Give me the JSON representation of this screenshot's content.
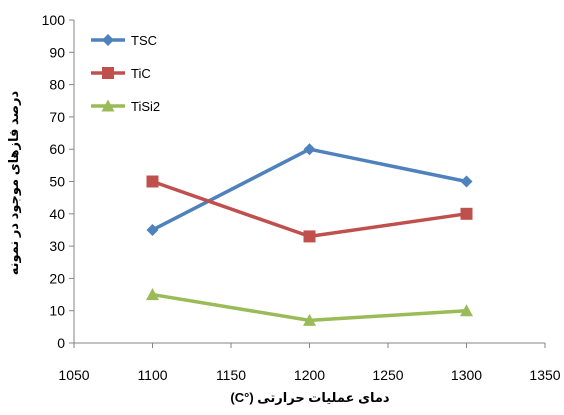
{
  "chart_data": {
    "type": "line",
    "xlabel": "دمای عملیات حرارتی (°C)",
    "ylabel": "درصد فازهای موجود در نمونه",
    "xlim": [
      1050,
      1350
    ],
    "ylim": [
      0,
      100
    ],
    "xticks": [
      1050,
      1100,
      1150,
      1200,
      1250,
      1300,
      1350
    ],
    "yticks": [
      0,
      10,
      20,
      30,
      40,
      50,
      60,
      70,
      80,
      90,
      100
    ],
    "x": [
      1100,
      1200,
      1300
    ],
    "series": [
      {
        "name": "TSC",
        "values": [
          35,
          60,
          50
        ],
        "color": "#4f81bd",
        "marker": "diamond"
      },
      {
        "name": "TiC",
        "values": [
          50,
          33,
          40
        ],
        "color": "#c0504d",
        "marker": "square"
      },
      {
        "name": "TiSi2",
        "values": [
          15,
          7,
          10
        ],
        "color": "#9bbb59",
        "marker": "triangle"
      }
    ],
    "legend": "top-left",
    "grid": false
  }
}
